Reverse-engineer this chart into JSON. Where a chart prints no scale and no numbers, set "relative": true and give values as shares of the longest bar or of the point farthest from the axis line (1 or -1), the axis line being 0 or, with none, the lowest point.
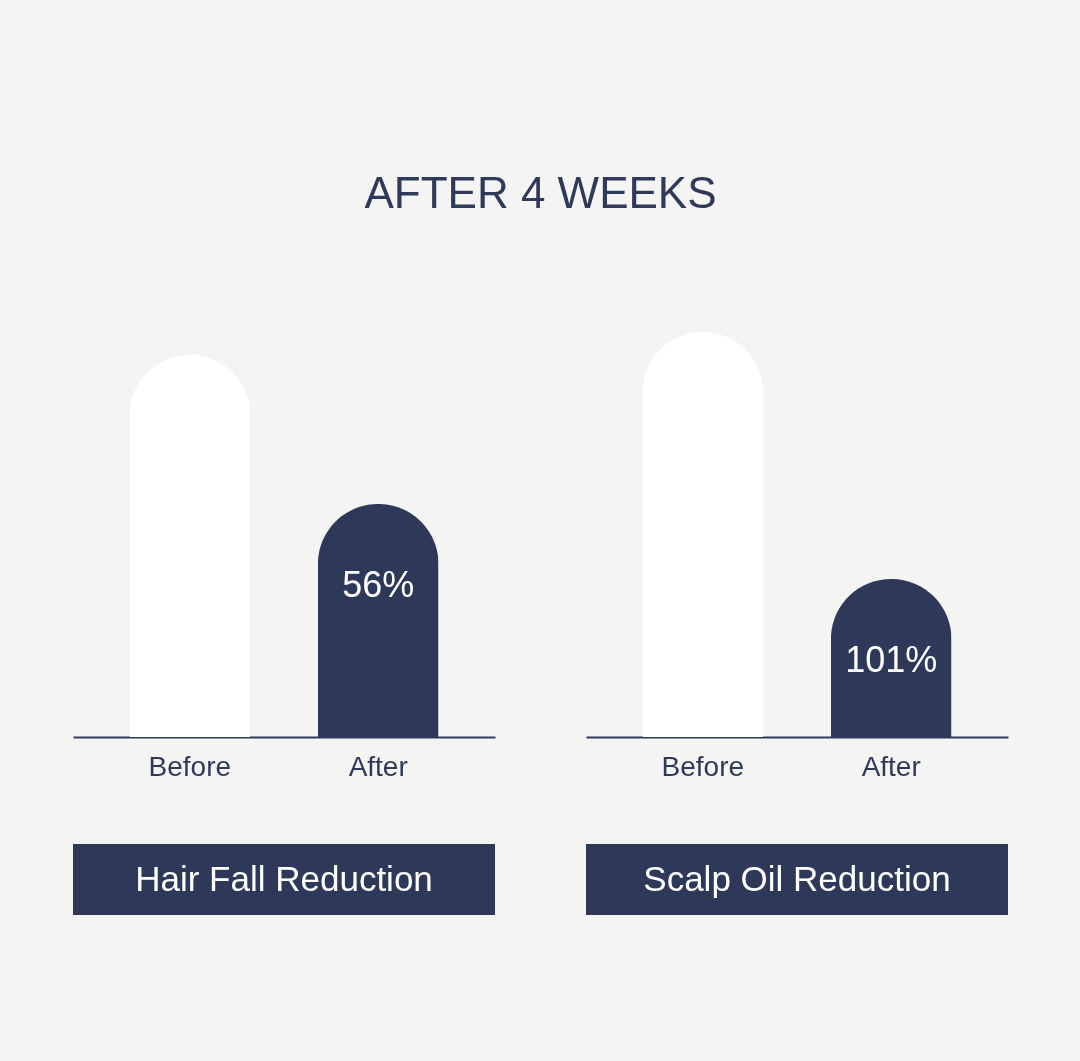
{
  "chart_data": [
    {
      "type": "bar",
      "title": "AFTER 4 WEEKS",
      "xlabel": "Hair Fall Reduction",
      "categories": [
        "Before",
        "After"
      ],
      "values": [
        1,
        0.61
      ],
      "colors": [
        "#ffffff",
        "#2e3859"
      ],
      "annotations": [
        {
          "text": "56%",
          "x": "After",
          "y": 0.61
        }
      ],
      "relative": true
    },
    {
      "type": "bar",
      "xlabel": "Scalp Oil Reduction",
      "categories": [
        "Before",
        "After"
      ],
      "values": [
        1,
        0.39
      ],
      "colors": [
        "#ffffff",
        "#2e3859"
      ],
      "annotations": [
        {
          "text": "101%",
          "x": "After",
          "y": 0.39
        }
      ],
      "relative": true
    }
  ]
}
